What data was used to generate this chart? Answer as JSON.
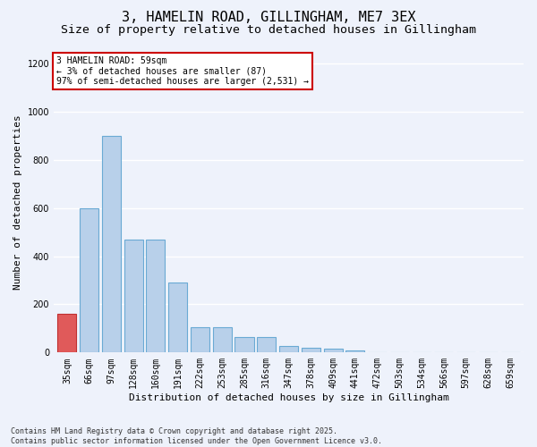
{
  "title1": "3, HAMELIN ROAD, GILLINGHAM, ME7 3EX",
  "title2": "Size of property relative to detached houses in Gillingham",
  "xlabel": "Distribution of detached houses by size in Gillingham",
  "ylabel": "Number of detached properties",
  "categories": [
    "35sqm",
    "66sqm",
    "97sqm",
    "128sqm",
    "160sqm",
    "191sqm",
    "222sqm",
    "253sqm",
    "285sqm",
    "316sqm",
    "347sqm",
    "378sqm",
    "409sqm",
    "441sqm",
    "472sqm",
    "503sqm",
    "534sqm",
    "566sqm",
    "597sqm",
    "628sqm",
    "659sqm"
  ],
  "values": [
    160,
    600,
    900,
    470,
    470,
    290,
    105,
    105,
    63,
    63,
    27,
    20,
    15,
    10,
    0,
    0,
    0,
    0,
    0,
    0,
    0
  ],
  "bar_color": "#b8d0ea",
  "bar_edge_color": "#6aaad4",
  "highlight_index": 0,
  "highlight_color": "#e05a5a",
  "highlight_edge_color": "#c03030",
  "ylim": [
    0,
    1250
  ],
  "yticks": [
    0,
    200,
    400,
    600,
    800,
    1000,
    1200
  ],
  "annotation_text": "3 HAMELIN ROAD: 59sqm\n← 3% of detached houses are smaller (87)\n97% of semi-detached houses are larger (2,531) →",
  "annotation_box_color": "#ffffff",
  "annotation_box_edge": "#cc0000",
  "footer_text": "Contains HM Land Registry data © Crown copyright and database right 2025.\nContains public sector information licensed under the Open Government Licence v3.0.",
  "bg_color": "#eef2fb",
  "grid_color": "#ffffff",
  "title1_fontsize": 11,
  "title2_fontsize": 9.5,
  "axis_label_fontsize": 8,
  "tick_fontsize": 7,
  "annotation_fontsize": 7,
  "footer_fontsize": 6
}
